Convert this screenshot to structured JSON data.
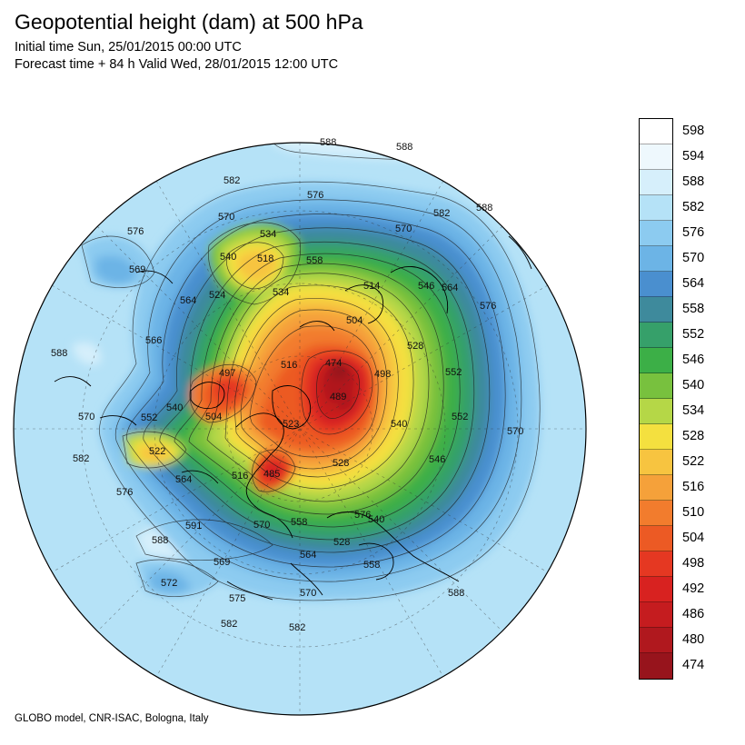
{
  "header": {
    "title": "Geopotential height (dam) at 500 hPa",
    "initial_time": "Initial time Sun, 25/01/2015 00:00 UTC",
    "forecast_time": "Forecast time + 84 h Valid Wed, 28/01/2015 12:00 UTC"
  },
  "footer": {
    "credit": "GLOBO model, CNR-ISAC, Bologna, Italy"
  },
  "legend": {
    "items": [
      {
        "label": "598",
        "color": "#ffffff"
      },
      {
        "label": "594",
        "color": "#eef8fd"
      },
      {
        "label": "588",
        "color": "#d6effb"
      },
      {
        "label": "582",
        "color": "#b5e2f7"
      },
      {
        "label": "576",
        "color": "#8ccbf0"
      },
      {
        "label": "570",
        "color": "#6cb4e6"
      },
      {
        "label": "564",
        "color": "#4a8fcf"
      },
      {
        "label": "558",
        "color": "#3e8a9c"
      },
      {
        "label": "552",
        "color": "#36a06a"
      },
      {
        "label": "546",
        "color": "#3caf47"
      },
      {
        "label": "540",
        "color": "#78c13e"
      },
      {
        "label": "534",
        "color": "#b5d747"
      },
      {
        "label": "528",
        "color": "#f4e03f"
      },
      {
        "label": "522",
        "color": "#f7c440"
      },
      {
        "label": "516",
        "color": "#f5a13a"
      },
      {
        "label": "510",
        "color": "#f27c2d"
      },
      {
        "label": "504",
        "color": "#ec5a24"
      },
      {
        "label": "498",
        "color": "#e53822"
      },
      {
        "label": "492",
        "color": "#d82220"
      },
      {
        "label": "486",
        "color": "#c51c1f"
      },
      {
        "label": "480",
        "color": "#b0181e"
      },
      {
        "label": "474",
        "color": "#97141c"
      }
    ]
  },
  "map": {
    "contour_labels": [
      {
        "text": "588",
        "value": 588
      },
      {
        "text": "588",
        "value": 588
      },
      {
        "text": "582",
        "value": 582
      },
      {
        "text": "576",
        "value": 576
      },
      {
        "text": "570",
        "value": 570
      },
      {
        "text": "582",
        "value": 582
      },
      {
        "text": "588",
        "value": 588
      },
      {
        "text": "576",
        "value": 576
      },
      {
        "text": "570",
        "value": 570
      },
      {
        "text": "534",
        "value": 534
      },
      {
        "text": "540",
        "value": 540
      },
      {
        "text": "518",
        "value": 518
      },
      {
        "text": "558",
        "value": 558
      },
      {
        "text": "569",
        "value": 569
      },
      {
        "text": "524",
        "value": 524
      },
      {
        "text": "534",
        "value": 534
      },
      {
        "text": "514",
        "value": 514
      },
      {
        "text": "546",
        "value": 546
      },
      {
        "text": "564",
        "value": 564
      },
      {
        "text": "576",
        "value": 576
      },
      {
        "text": "564",
        "value": 564
      },
      {
        "text": "504",
        "value": 504
      },
      {
        "text": "566",
        "value": 566
      },
      {
        "text": "528",
        "value": 528
      },
      {
        "text": "588",
        "value": 588
      },
      {
        "text": "474",
        "value": 474
      },
      {
        "text": "498",
        "value": 498
      },
      {
        "text": "497",
        "value": 497
      },
      {
        "text": "516",
        "value": 516
      },
      {
        "text": "489",
        "value": 489
      },
      {
        "text": "552",
        "value": 552
      },
      {
        "text": "540",
        "value": 540
      },
      {
        "text": "552",
        "value": 552
      },
      {
        "text": "504",
        "value": 504
      },
      {
        "text": "523",
        "value": 523
      },
      {
        "text": "570",
        "value": 570
      },
      {
        "text": "570",
        "value": 570
      },
      {
        "text": "540",
        "value": 540
      },
      {
        "text": "552",
        "value": 552
      },
      {
        "text": "522",
        "value": 522
      },
      {
        "text": "546",
        "value": 546
      },
      {
        "text": "528",
        "value": 528
      },
      {
        "text": "582",
        "value": 582
      },
      {
        "text": "564",
        "value": 564
      },
      {
        "text": "516",
        "value": 516
      },
      {
        "text": "485",
        "value": 485
      },
      {
        "text": "576",
        "value": 576
      },
      {
        "text": "540",
        "value": 540
      },
      {
        "text": "570",
        "value": 570
      },
      {
        "text": "558",
        "value": 558
      },
      {
        "text": "576",
        "value": 576
      },
      {
        "text": "591",
        "value": 591
      },
      {
        "text": "588",
        "value": 588
      },
      {
        "text": "528",
        "value": 528
      },
      {
        "text": "569",
        "value": 569
      },
      {
        "text": "564",
        "value": 564
      },
      {
        "text": "558",
        "value": 558
      },
      {
        "text": "572",
        "value": 572
      },
      {
        "text": "575",
        "value": 575
      },
      {
        "text": "570",
        "value": 570
      },
      {
        "text": "588",
        "value": 588
      },
      {
        "text": "582",
        "value": 582
      },
      {
        "text": "582",
        "value": 582
      }
    ]
  }
}
